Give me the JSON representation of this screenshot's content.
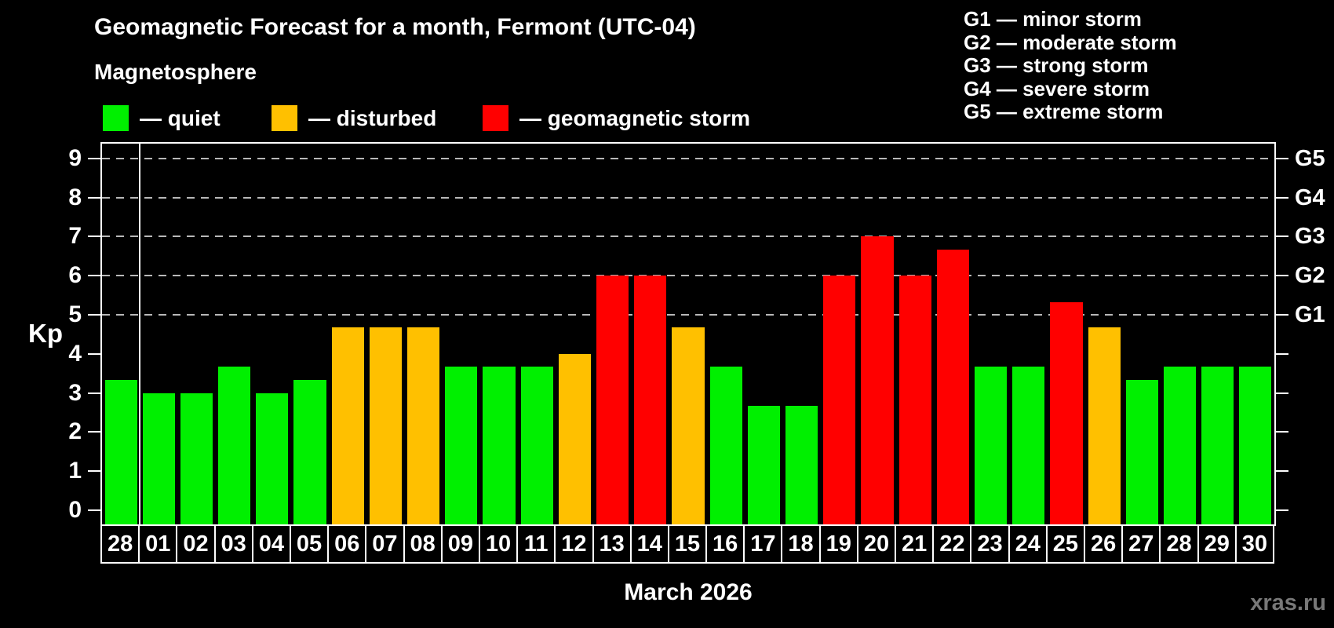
{
  "header": {
    "title": "Geomagnetic Forecast for a month, Fermont (UTC-04)",
    "subtitle": "Magnetosphere"
  },
  "legend": {
    "items": [
      {
        "key": "quiet",
        "label": "— quiet"
      },
      {
        "key": "disturbed",
        "label": "— disturbed"
      },
      {
        "key": "storm",
        "label": "— geomagnetic storm"
      }
    ]
  },
  "g_scale_legend": {
    "lines": [
      "G1 — minor storm",
      "G2 — moderate storm",
      "G3 — strong storm",
      "G4 — severe storm",
      "G5 — extreme storm"
    ]
  },
  "watermark": "xras.ru",
  "chart_data": {
    "type": "bar",
    "title": "Geomagnetic Forecast for a month, Fermont (UTC-04)",
    "subtitle": "Magnetosphere",
    "xlabel": "March 2026",
    "ylabel": "Kp",
    "ylim": [
      0,
      9
    ],
    "y_ticks": [
      0,
      1,
      2,
      3,
      4,
      5,
      6,
      7,
      8,
      9
    ],
    "grid_levels": [
      5,
      6,
      7,
      8,
      9
    ],
    "grid_on": true,
    "legend_position": "top",
    "right_axis": [
      {
        "label": "G1",
        "kp": 5
      },
      {
        "label": "G2",
        "kp": 6
      },
      {
        "label": "G3",
        "kp": 7
      },
      {
        "label": "G4",
        "kp": 8
      },
      {
        "label": "G5",
        "kp": 9
      }
    ],
    "categories": [
      "28",
      "01",
      "02",
      "03",
      "04",
      "05",
      "06",
      "07",
      "08",
      "09",
      "10",
      "11",
      "12",
      "13",
      "14",
      "15",
      "16",
      "17",
      "18",
      "19",
      "20",
      "21",
      "22",
      "23",
      "24",
      "25",
      "26",
      "27",
      "28",
      "29",
      "30"
    ],
    "values": [
      3.33,
      3,
      3,
      3.67,
      3,
      3.33,
      4.67,
      4.67,
      4.67,
      3.67,
      3.67,
      3.67,
      4,
      6,
      6,
      4.67,
      3.67,
      2.67,
      2.67,
      6,
      7,
      6,
      6.67,
      3.67,
      3.67,
      5.33,
      4.67,
      3.33,
      3.67,
      3.67,
      3.67
    ],
    "statuses": [
      "quiet",
      "quiet",
      "quiet",
      "quiet",
      "quiet",
      "quiet",
      "disturbed",
      "disturbed",
      "disturbed",
      "quiet",
      "quiet",
      "quiet",
      "disturbed",
      "storm",
      "storm",
      "disturbed",
      "quiet",
      "quiet",
      "quiet",
      "storm",
      "storm",
      "storm",
      "storm",
      "quiet",
      "quiet",
      "storm",
      "disturbed",
      "quiet",
      "quiet",
      "quiet",
      "quiet"
    ],
    "colors": {
      "quiet": "#00f000",
      "disturbed": "#ffc000",
      "storm": "#ff0000"
    },
    "month_separator_after_index": 0
  }
}
